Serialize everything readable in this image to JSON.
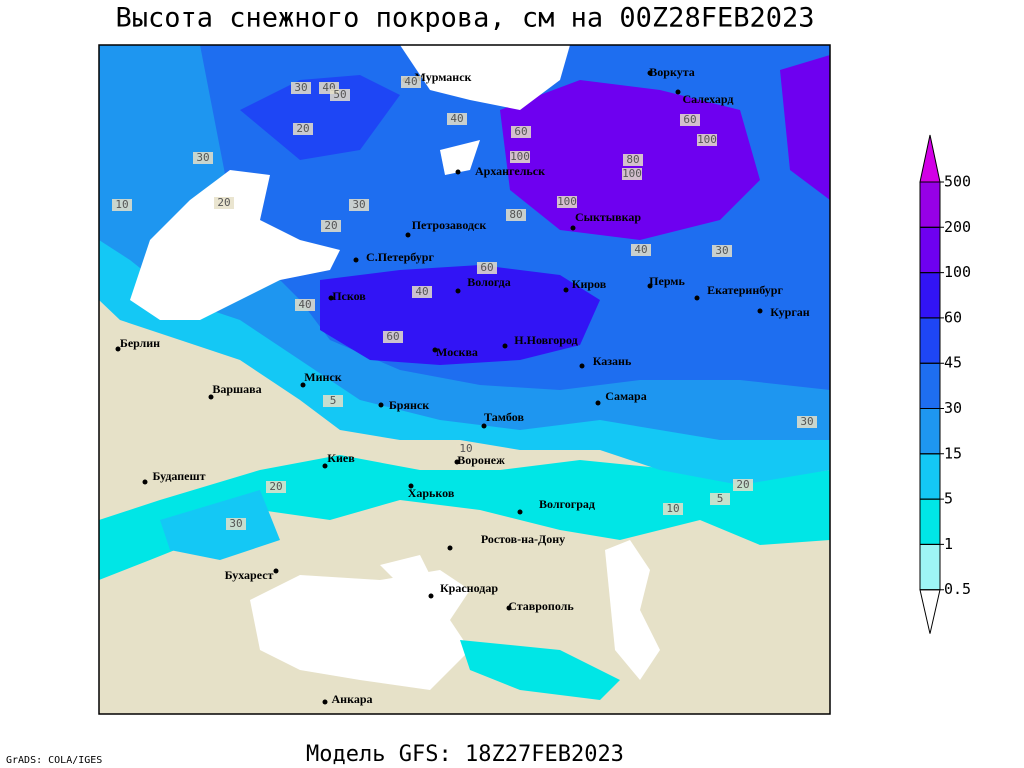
{
  "title": "Высота снежного покрова, см на 00Z28FEB2023",
  "footer": {
    "credit": "GrADS: COLA/IGES",
    "model": "Модель GFS: 18Z27FEB2023"
  },
  "legend": {
    "levels": [
      0.5,
      1,
      5,
      15,
      30,
      45,
      60,
      100,
      200,
      500
    ],
    "colors": [
      "#ffffff",
      "#9ef5f5",
      "#00e6e6",
      "#14c8f5",
      "#1e96f0",
      "#1e6ef0",
      "#1e46f5",
      "#3214f5",
      "#6e00f0",
      "#9600e6",
      "#d200e6"
    ]
  },
  "cities": [
    "Мурманск",
    "Воркута",
    "Салехард",
    "Архангельск",
    "Сыктывкар",
    "Петрозаводск",
    "С.Петербург",
    "Вологда",
    "Киров",
    "Пермь",
    "Екатеринбург",
    "Курган",
    "Псков",
    "Берлин",
    "Н.Новгород",
    "Москва",
    "Казань",
    "Минск",
    "Варшава",
    "Самара",
    "Брянск",
    "Тамбов",
    "Киев",
    "Воронеж",
    "Будапешт",
    "Харьков",
    "Волгоград",
    "Ростов-на-Дону",
    "Бухарест",
    "Краснодар",
    "Ставрополь",
    "Анкара"
  ],
  "contour_labels": [
    "30",
    "40",
    "50",
    "40",
    "60",
    "40",
    "30",
    "10",
    "20",
    "20",
    "30",
    "100",
    "100",
    "80",
    "100",
    "60",
    "80",
    "100",
    "60",
    "40",
    "30",
    "60",
    "40",
    "40",
    "30",
    "20",
    "5",
    "10",
    "20",
    "10",
    "5",
    "30",
    "20"
  ]
}
